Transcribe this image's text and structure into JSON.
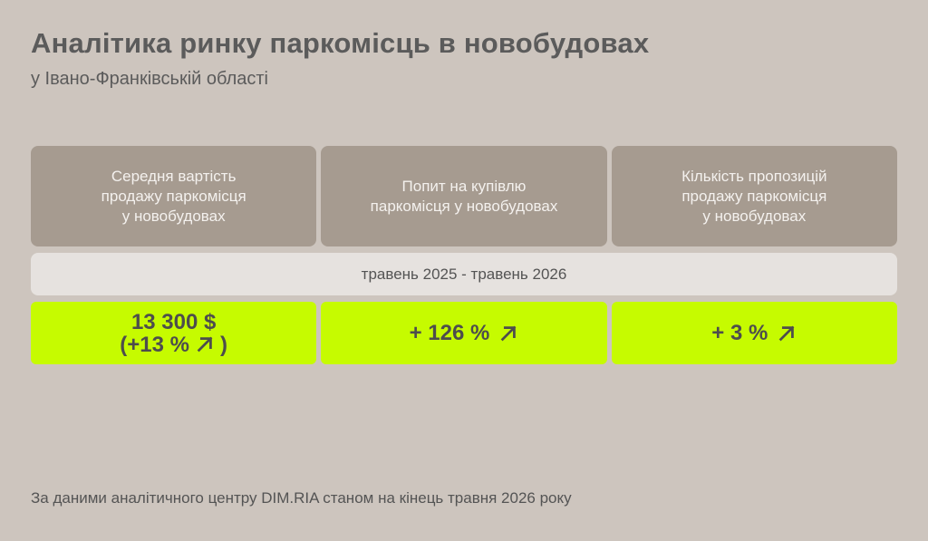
{
  "header": {
    "title": "Аналітика ринку паркомісць в новобудовах",
    "subtitle": "у Івано-Франківській області"
  },
  "columns": [
    {
      "label": "Середня вартість\nпродажу паркомісця\nу новобудовах"
    },
    {
      "label": "Попит на купівлю\nпаркомісця у новобудовах"
    },
    {
      "label": "Кількість пропозицій\nпродажу паркомісця\nу новобудовах"
    }
  ],
  "period": "травень 2025 - травень 2026",
  "values": {
    "price_main": "13 300 $",
    "price_change": "(+13 %",
    "price_close": ")",
    "demand": "+ 126 %",
    "supply": "+ 3 %"
  },
  "icons": {
    "trend": "arrow-up-right-icon"
  },
  "colors": {
    "accent": "#c6fb00",
    "header_cell": "#a69b90",
    "background": "#cdc5be"
  },
  "footnote": "За даними аналітичного центру DIM.RIA станом на кінець травня 2026 року"
}
